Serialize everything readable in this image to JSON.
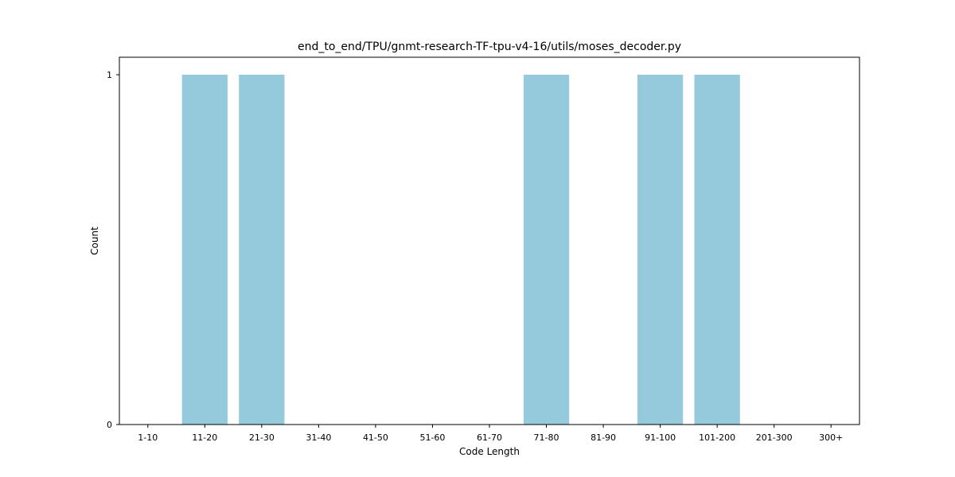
{
  "chart_data": {
    "type": "bar",
    "title": "end_to_end/TPU/gnmt-research-TF-tpu-v4-16/utils/moses_decoder.py",
    "xlabel": "Code Length",
    "ylabel": "Count",
    "categories": [
      "1-10",
      "11-20",
      "21-30",
      "31-40",
      "41-50",
      "51-60",
      "61-70",
      "71-80",
      "81-90",
      "91-100",
      "101-200",
      "201-300",
      "300+"
    ],
    "values": [
      0,
      1,
      1,
      0,
      0,
      0,
      0,
      1,
      0,
      1,
      1,
      0,
      0
    ],
    "ylim": [
      0,
      1
    ],
    "yticks": [
      0,
      1
    ],
    "grid": false,
    "bar_color": "#95c9dc"
  }
}
